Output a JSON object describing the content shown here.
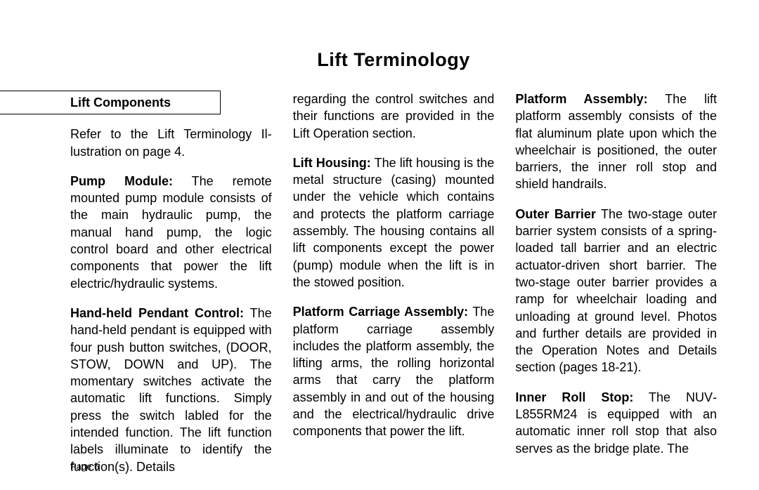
{
  "title": "Lift Terminology",
  "section_header": "Lift Components",
  "page_label": "Page 6",
  "columns": [
    {
      "paragraphs": [
        {
          "term": "",
          "text": "Refer to the Lift Terminology Il­lustration on page 4."
        },
        {
          "term": "Pump Module:",
          "text": "  The remote mounted pump module consists of the main hydraulic pump, the manual hand pump, the logic control board and other electrical components that power the lift electric/hydraulic systems."
        },
        {
          "term": "Hand-held Pendant Con­trol:",
          "text": "   The hand-held pendant is equipped with  four push button switches, (DOOR, STOW, DOWN and UP).  The momentary switch­es activate the automatic lift functions. Simply press the switch labled for the intended function. The lift function labels illuminate to identify the function(s).  Details"
        }
      ]
    },
    {
      "paragraphs": [
        {
          "term": "",
          "text": "regarding the control switches and their functions are provided in the Lift Operation section."
        },
        {
          "term": "Lift Housing:",
          "text": "  The lift housing is the metal structure (casing) mounted under the vehicle which contains and protects the platform carriage assembly.  The hous­ing contains all lift components except the power (pump) module when the lift is in the stowed posi­tion."
        },
        {
          "term": "Platform Carriage Assembly:",
          "text": "  The platform carriage assembly includes the platform assembly, the lifting arms, the rolling hori­zontal arms that carry the plat­form assembly in and out of the housing and the electrical/hydrau­lic drive components that power the lift."
        }
      ]
    },
    {
      "paragraphs": [
        {
          "term": "Platform Assembly:",
          "text": "  The lift platform assembly consists of the flat aluminum plate upon which the wheelchair is positioned, the outer barriers, the inner roll stop and shield handrails."
        },
        {
          "term": "Outer Barrier",
          "text": "  The two-stage outer barrier system consists of a spring-loaded tall barrier and an electric actuator-driven short bar­rier.  The two-stage outer barrier provides a ramp for wheelchair loading and unloading at ground level.  Photos and further details are provided in the Operation Notes and Details section (pages 18-21)."
        },
        {
          "term": "Inner Roll Stop:",
          "text": "  The NUV­L855RM24 is equipped with an automatic inner roll stop that also serves as the bridge plate.  The"
        }
      ]
    }
  ]
}
